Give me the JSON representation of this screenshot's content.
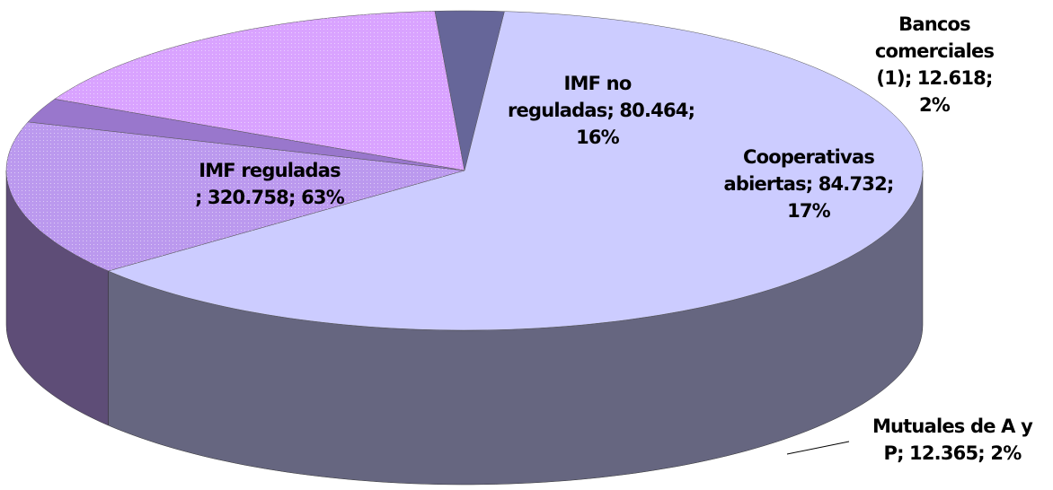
{
  "chart_data": {
    "type": "pie3d",
    "categories": [
      "IMF reguladas ;",
      "IMF no reguladas;",
      "Bancos comerciales (1);",
      "Cooperativas abiertas;",
      "Mutuales de A y P;"
    ],
    "values": [
      320758,
      80464,
      12618,
      84732,
      12365
    ],
    "value_labels": [
      "320.758; 63%",
      "80.464; 16%",
      "12.618; 2%",
      "84.732; 17%",
      "12.365; 2%"
    ],
    "colors": [
      "#ccccff",
      "#bb99ee",
      "#9977cc",
      "#d9a3ff",
      "#666699"
    ]
  }
}
